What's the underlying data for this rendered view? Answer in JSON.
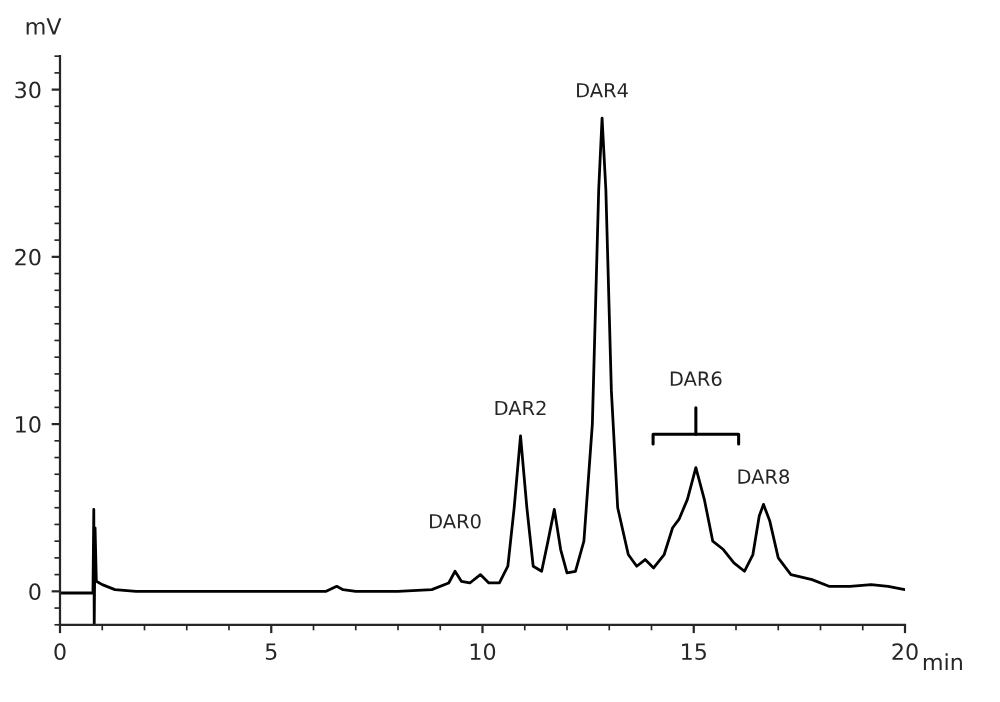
{
  "chart_data": {
    "type": "line",
    "xlabel": "min",
    "ylabel": "mV",
    "xlim": [
      0,
      20
    ],
    "ylim": [
      -2,
      32
    ],
    "xticks": [
      0,
      5,
      10,
      15,
      20
    ],
    "yticks": [
      0,
      10,
      20,
      30
    ],
    "series": [
      {
        "color": "#000000",
        "x": [
          0,
          0.78,
          0.8,
          0.81,
          0.83,
          0.86,
          1.0,
          1.3,
          1.8,
          3,
          5,
          6.3,
          6.55,
          6.7,
          7.0,
          8.0,
          8.8,
          9.2,
          9.35,
          9.5,
          9.7,
          9.95,
          10.15,
          10.4,
          10.6,
          10.75,
          10.9,
          11.05,
          11.2,
          11.4,
          11.55,
          11.7,
          11.85,
          12.0,
          12.2,
          12.4,
          12.6,
          12.75,
          12.83,
          12.92,
          13.05,
          13.2,
          13.45,
          13.65,
          13.85,
          14.05,
          14.3,
          14.5,
          14.65,
          14.85,
          15.05,
          15.25,
          15.45,
          15.7,
          15.95,
          16.2,
          16.4,
          16.55,
          16.65,
          16.8,
          17.0,
          17.3,
          17.8,
          18.2,
          18.7,
          19.2,
          19.6,
          20.0
        ],
        "values": [
          -0.1,
          -0.1,
          4.9,
          -2.0,
          3.8,
          0.6,
          0.4,
          0.1,
          0.0,
          0.0,
          0.0,
          0.0,
          0.3,
          0.1,
          0.0,
          0.0,
          0.1,
          0.5,
          1.2,
          0.6,
          0.5,
          1.0,
          0.5,
          0.5,
          1.5,
          5.0,
          9.3,
          5.0,
          1.5,
          1.2,
          3.0,
          4.9,
          2.5,
          1.1,
          1.2,
          3.0,
          10.0,
          24.0,
          28.3,
          24.0,
          12.0,
          5.0,
          2.2,
          1.5,
          1.9,
          1.4,
          2.2,
          3.8,
          4.3,
          5.5,
          7.4,
          5.5,
          3.0,
          2.5,
          1.7,
          1.2,
          2.2,
          4.5,
          5.2,
          4.2,
          2.0,
          1.0,
          0.7,
          0.3,
          0.3,
          0.4,
          0.3,
          0.1
        ]
      }
    ],
    "annotations": [
      {
        "text": "DAR0",
        "x": 9.35,
        "y": 1.2
      },
      {
        "text": "DAR2",
        "x": 10.9,
        "y": 9.3
      },
      {
        "text": "DAR4",
        "x": 12.83,
        "y": 28.3
      },
      "DAR6",
      {
        "text": "DAR8",
        "x": 16.65,
        "y": 5.2
      }
    ],
    "grid": false,
    "legend": false
  }
}
